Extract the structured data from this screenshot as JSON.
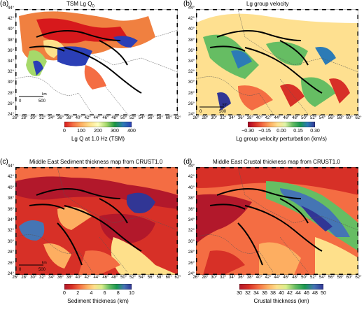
{
  "panels": [
    {
      "label": "(a)",
      "title": "TSM Lg Q",
      "title_sub": "0",
      "colorbar": {
        "ticks": [
          "0",
          "100",
          "200",
          "300",
          "400"
        ],
        "title": "Lg Q at 1.0 Hz (TSM)",
        "colors": [
          "#d7191c",
          "#f46d43",
          "#fdae61",
          "#fee08b",
          "#ffffbf",
          "#a6d96a",
          "#1a9641",
          "#2c7bb6",
          "#2b3fb6"
        ]
      },
      "scale_bar": {
        "zero": "0",
        "end": "500",
        "unit": "km"
      }
    },
    {
      "label": "(b)",
      "title": "Lg group velocity",
      "title_sub": "",
      "colorbar": {
        "ticks": [
          "−0.30",
          "−0.15",
          "0.00",
          "0.15",
          "0.30"
        ],
        "title": "Lg group velocity perturbation (km/s)",
        "colors": [
          "#a50026",
          "#d73027",
          "#f46d43",
          "#fdae61",
          "#fee090",
          "#e0f3a8",
          "#66bd63",
          "#1a9850",
          "#2c7bb6",
          "#313695"
        ]
      },
      "scale_bar": {
        "zero": "0",
        "end": "500",
        "unit": "km"
      }
    },
    {
      "label": "(c)",
      "title": "Middle East Sediment thickness map from CRUST1.0",
      "title_sub": "",
      "colorbar": {
        "ticks": [
          "0",
          "2",
          "4",
          "6",
          "8",
          "10"
        ],
        "title": "Sediment thickness (km)",
        "colors": [
          "#b2182b",
          "#d73027",
          "#f46d43",
          "#fdae61",
          "#fee08b",
          "#d9ef8b",
          "#66bd63",
          "#1a9850",
          "#4575b4",
          "#313695"
        ]
      },
      "scale_bar": {
        "zero": "0",
        "end": "500",
        "unit": "km"
      }
    },
    {
      "label": "(d)",
      "title": "Middle East Crustal thickness map from CRUST1.0",
      "title_sub": "",
      "colorbar": {
        "ticks": [
          "30",
          "32",
          "34",
          "36",
          "38",
          "40",
          "42",
          "44",
          "46",
          "48",
          "50"
        ],
        "title": "Crustal thickness (km)",
        "colors": [
          "#b2182b",
          "#d73027",
          "#f46d43",
          "#fdae61",
          "#fee08b",
          "#d9ef8b",
          "#66bd63",
          "#1a9850",
          "#4575b4",
          "#313695"
        ]
      },
      "scale_bar": {
        "zero": "",
        "end": "",
        "unit": ""
      }
    }
  ],
  "latitude_labels": [
    "44°",
    "42°",
    "40°",
    "38°",
    "36°",
    "34°",
    "32°",
    "30°",
    "28°",
    "26°",
    "24°"
  ],
  "longitude_labels": [
    "26°",
    "28°",
    "30°",
    "32°",
    "34°",
    "36°",
    "38°",
    "40°",
    "42°",
    "44°",
    "46°",
    "48°",
    "50°",
    "52°",
    "54°",
    "56°",
    "58°",
    "60°",
    "62°"
  ]
}
